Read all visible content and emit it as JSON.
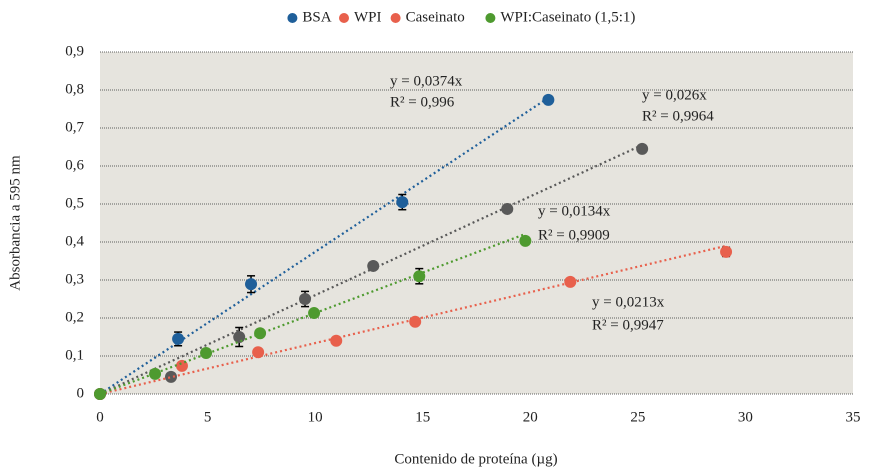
{
  "chart_data": {
    "type": "scatter",
    "x_label": "Contenido de proteína (µg)",
    "y_label": "Absorbancia a 595 nm",
    "xlim": [
      0,
      35
    ],
    "xticks": [
      0,
      5,
      10,
      15,
      20,
      25,
      30,
      35
    ],
    "ylim": [
      0,
      0.9
    ],
    "yticks": [
      0,
      {
        "value": 0.1,
        "label": "0,1"
      },
      {
        "value": 0.2,
        "label": "0,2"
      },
      {
        "value": 0.3,
        "label": "0,3"
      },
      {
        "value": 0.4,
        "label": "0,4"
      },
      {
        "value": 0.5,
        "label": "0,5"
      },
      {
        "value": 0.6,
        "label": "0,6"
      },
      {
        "value": 0.7,
        "label": "0,7"
      },
      {
        "value": 0.8,
        "label": "0,8"
      },
      {
        "value": 0.9,
        "label": "0,9"
      }
    ],
    "grid": true,
    "legend": "top",
    "series": [
      {
        "name": "BSA",
        "color": "#1f5f9a",
        "legend_color": "#1f5f9a",
        "x": [
          0,
          3.63,
          7.02,
          14.05,
          20.84
        ],
        "values": [
          0,
          0.145,
          0.289,
          0.505,
          0.774
        ],
        "errors": [
          null,
          0.018,
          0.022,
          0.02,
          null
        ],
        "trendline": {
          "slope": 0.0374,
          "label": "y = 0,0374x",
          "r2_label": "R² = 0,996"
        }
      },
      {
        "name": "WPI",
        "color": "#595959",
        "legend_color": "#e8604c",
        "x": [
          0,
          3.3,
          6.47,
          9.53,
          12.7,
          18.93,
          25.2
        ],
        "values": [
          0,
          0.045,
          0.15,
          0.25,
          0.337,
          0.487,
          0.645
        ],
        "errors": [
          null,
          null,
          0.025,
          0.02,
          null,
          null,
          null
        ],
        "trendline": {
          "slope": 0.026,
          "label": "y = 0,026x",
          "r2_label": "R² = 0,9964"
        }
      },
      {
        "name": "Caseinato",
        "color": "#e8604c",
        "legend_color": "#e8604c",
        "x": [
          0,
          3.81,
          7.35,
          10.98,
          14.65,
          21.86,
          29.1
        ],
        "values": [
          0,
          0.074,
          0.11,
          0.14,
          0.19,
          0.295,
          0.374
        ],
        "errors": [
          null,
          null,
          null,
          null,
          null,
          null,
          0.012
        ],
        "trendline": {
          "slope": 0.0134,
          "label": "y = 0,0134x",
          "r2_label": "R² = 0,9909"
        }
      },
      {
        "name": "WPI:Caseinato (1,5:1)",
        "color": "#4e9a2f",
        "legend_color": "#4e9a2f",
        "x": [
          0,
          2.56,
          4.93,
          7.44,
          9.95,
          14.84,
          19.77
        ],
        "values": [
          0,
          0.053,
          0.108,
          0.16,
          0.213,
          0.31,
          0.403
        ],
        "errors": [
          null,
          null,
          null,
          null,
          null,
          0.02,
          null
        ],
        "trendline": {
          "slope": 0.0213,
          "label": "y = 0,0213x",
          "r2_label": "R² = 0,9947"
        }
      }
    ]
  }
}
